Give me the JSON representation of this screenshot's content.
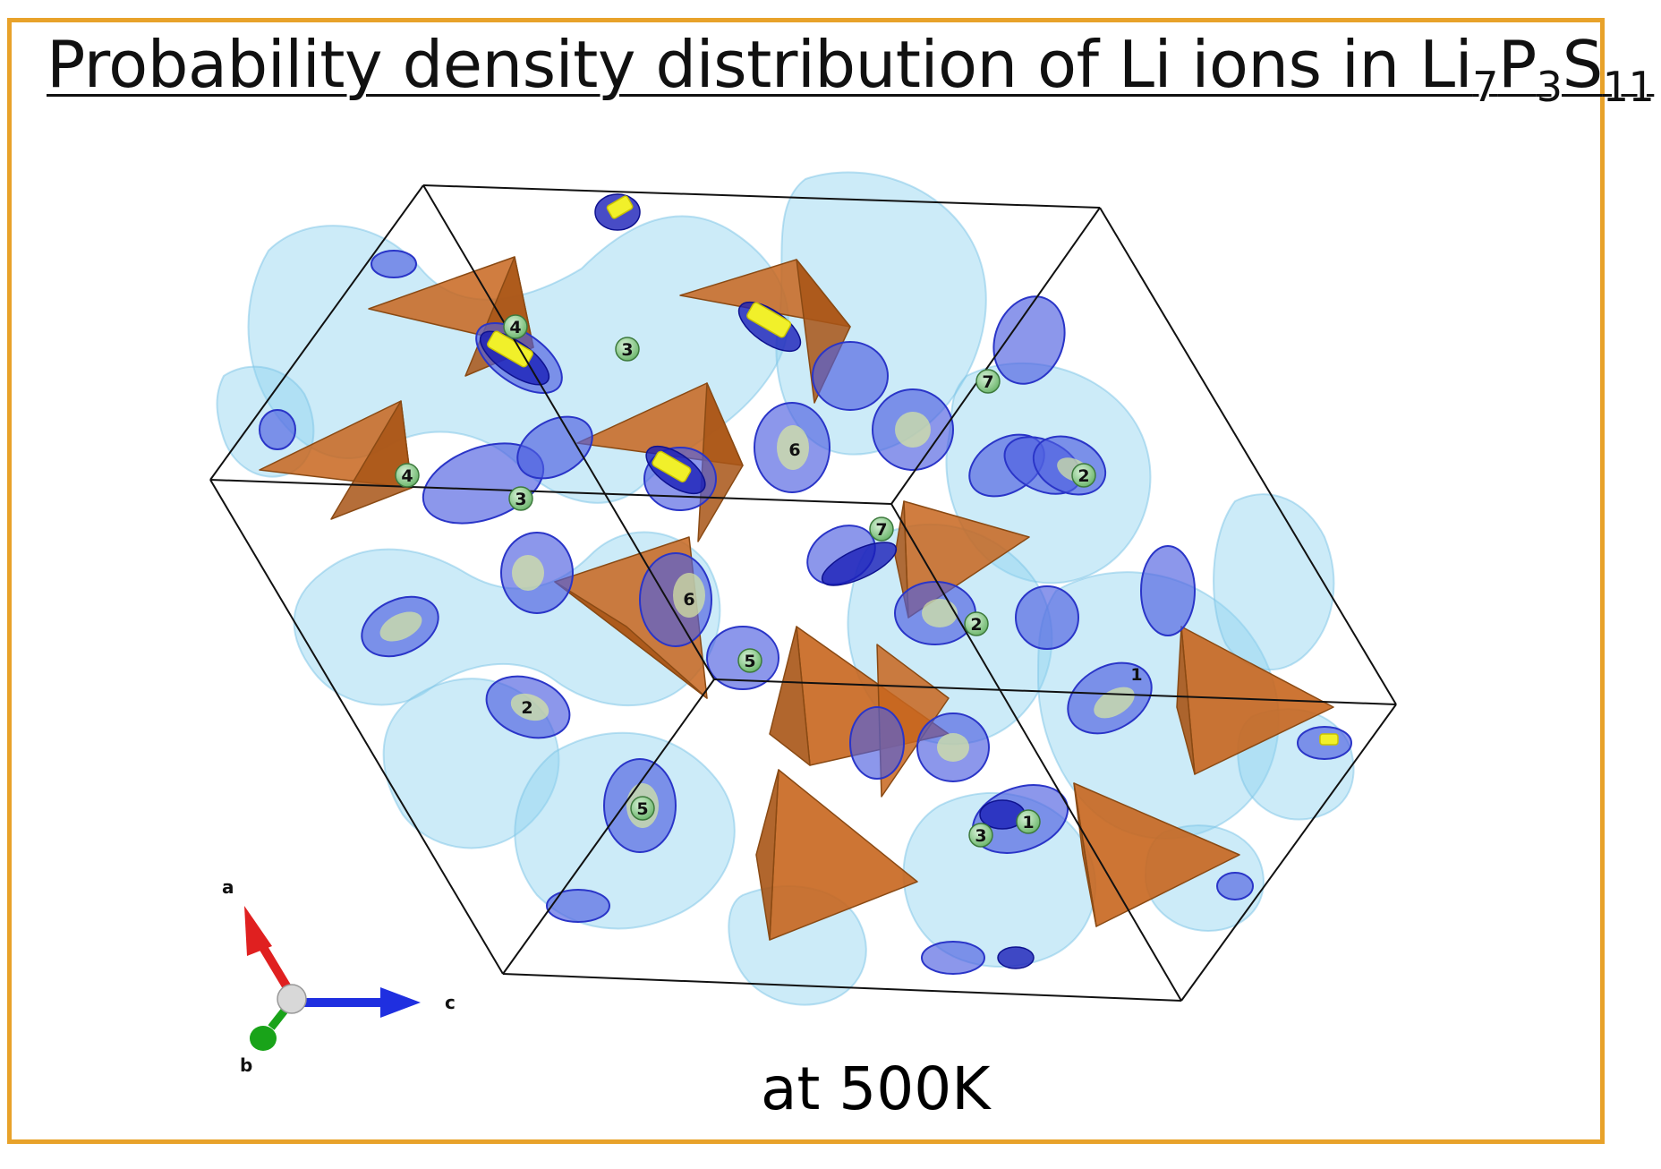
{
  "title": {
    "prefix": "Probability density distribution of Li ions in Li",
    "sub1": "7",
    "p": "P",
    "sub2": "3",
    "s": "S",
    "sub3": "11"
  },
  "caption": "at 500K",
  "site_labels": [
    {
      "text": "4"
    },
    {
      "text": "3"
    },
    {
      "text": "4"
    },
    {
      "text": "3"
    },
    {
      "text": "6"
    },
    {
      "text": "7"
    },
    {
      "text": "7"
    },
    {
      "text": "2"
    },
    {
      "text": "6"
    },
    {
      "text": "5"
    },
    {
      "text": "2"
    },
    {
      "text": "2"
    },
    {
      "text": "1"
    },
    {
      "text": "5"
    },
    {
      "text": "3"
    },
    {
      "text": "1"
    }
  ],
  "axes": {
    "a": {
      "label": "a",
      "color": "#e02020"
    },
    "b": {
      "label": "b",
      "color": "#19a319"
    },
    "c": {
      "label": "c",
      "color": "#1f2fe0"
    }
  },
  "colors": {
    "frame": "#e8a22a",
    "tetrahedron": "#c8661e",
    "density_light": "#8fd3f0",
    "density_mid": "#4f5fe0",
    "density_dark": "#1a1fb8",
    "density_core": "#f1f02a",
    "li_site": "#8fd08f"
  }
}
